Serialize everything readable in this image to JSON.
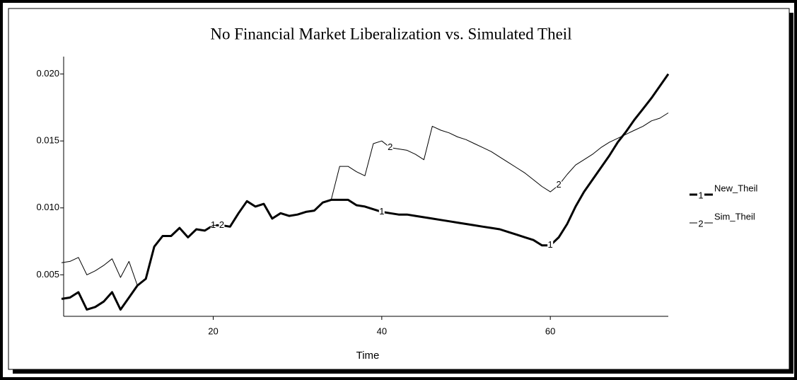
{
  "chart_data": {
    "type": "line",
    "title": "No Financial Market Liberalization vs. Simulated Theil",
    "x_label": "Time",
    "x": [
      2,
      3,
      4,
      5,
      6,
      7,
      8,
      9,
      10,
      11,
      12,
      13,
      14,
      15,
      16,
      17,
      18,
      19,
      20,
      21,
      22,
      23,
      24,
      25,
      26,
      27,
      28,
      29,
      30,
      31,
      32,
      33,
      34,
      35,
      36,
      37,
      38,
      39,
      40,
      41,
      42,
      43,
      44,
      45,
      46,
      47,
      48,
      49,
      50,
      51,
      52,
      53,
      54,
      55,
      56,
      57,
      58,
      59,
      60,
      61,
      62,
      63,
      64,
      65,
      66,
      67,
      68,
      69,
      70,
      71,
      72,
      73,
      74
    ],
    "series": [
      {
        "name": "New_Theil",
        "marker_label": "1",
        "color": "#000000",
        "width": 3,
        "values": [
          0.0032,
          0.0033,
          0.0037,
          0.0024,
          0.0026,
          0.003,
          0.0037,
          0.0024,
          0.0033,
          0.0042,
          0.0047,
          0.0071,
          0.0079,
          0.0079,
          0.0085,
          0.0078,
          0.0084,
          0.0083,
          0.0087,
          0.0087,
          0.0086,
          0.0096,
          0.0105,
          0.0101,
          0.0103,
          0.0092,
          0.0096,
          0.0094,
          0.0095,
          0.0097,
          0.0098,
          0.0104,
          0.0106,
          0.0106,
          0.0106,
          0.0102,
          0.0101,
          0.0099,
          0.0097,
          0.0096,
          0.0095,
          0.0095,
          0.0094,
          0.0093,
          0.0092,
          0.0091,
          0.009,
          0.0089,
          0.0088,
          0.0087,
          0.0086,
          0.0085,
          0.0084,
          0.0082,
          0.008,
          0.0078,
          0.0076,
          0.0072,
          0.0072,
          0.0078,
          0.0088,
          0.0101,
          0.0112,
          0.0121,
          0.013,
          0.0139,
          0.0149,
          0.0157,
          0.0166,
          0.0174,
          0.0182,
          0.0191,
          0.02
        ]
      },
      {
        "name": "Sim_Theil",
        "marker_label": "2",
        "color": "#000000",
        "width": 1,
        "values": [
          0.0059,
          0.006,
          0.0063,
          0.005,
          0.0053,
          0.0057,
          0.0062,
          0.0048,
          0.006,
          0.0042,
          0.0047,
          0.0071,
          0.0079,
          0.0079,
          0.0085,
          0.0078,
          0.0084,
          0.0083,
          0.0087,
          0.0087,
          0.0086,
          0.0096,
          0.0105,
          0.0101,
          0.0103,
          0.0092,
          0.0096,
          0.0094,
          0.0095,
          0.0097,
          0.0098,
          0.0104,
          0.0106,
          0.0131,
          0.0131,
          0.0127,
          0.0124,
          0.0148,
          0.015,
          0.0145,
          0.0144,
          0.0143,
          0.014,
          0.0136,
          0.0161,
          0.0158,
          0.0156,
          0.0153,
          0.0151,
          0.0148,
          0.0145,
          0.0142,
          0.0138,
          0.0134,
          0.013,
          0.0126,
          0.0121,
          0.0116,
          0.0112,
          0.0117,
          0.0125,
          0.0132,
          0.0136,
          0.014,
          0.0145,
          0.0149,
          0.0152,
          0.0155,
          0.0158,
          0.0161,
          0.0165,
          0.0167,
          0.0171
        ]
      }
    ],
    "xlim": [
      2.25,
      74
    ],
    "ylim": [
      0.0019,
      0.0213
    ],
    "xticks": [
      20,
      40,
      60
    ],
    "yticks": [
      0.005,
      {
        "value": 0.01,
        "label": "0.010"
      },
      0.015,
      {
        "value": 0.02,
        "label": "0.020"
      }
    ],
    "grid": false,
    "legend": "right"
  }
}
